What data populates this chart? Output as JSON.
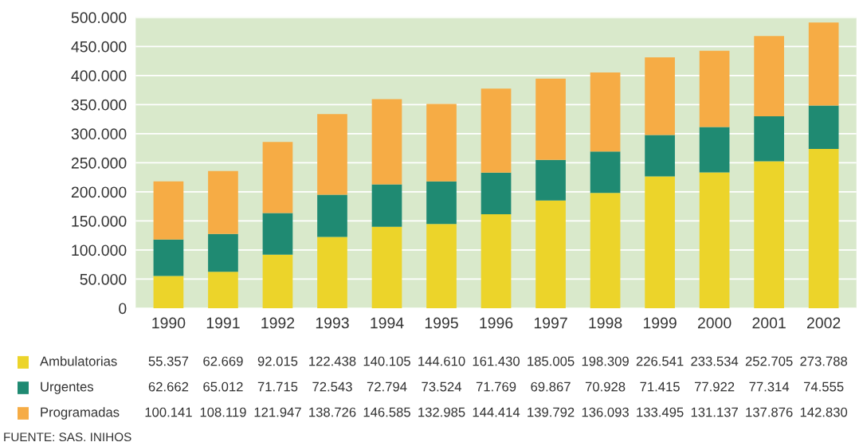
{
  "chart_data": {
    "type": "bar",
    "stacked": true,
    "categories": [
      "1990",
      "1991",
      "1992",
      "1993",
      "1994",
      "1995",
      "1996",
      "1997",
      "1998",
      "1999",
      "2000",
      "2001",
      "2002"
    ],
    "series": [
      {
        "name": "Ambulatorias",
        "color": "#ecd42a",
        "values": [
          55357,
          62669,
          92015,
          122438,
          140105,
          144610,
          161430,
          185005,
          198309,
          226541,
          233534,
          252705,
          273788
        ],
        "value_labels": [
          "55.357",
          "62.669",
          "92.015",
          "122.438",
          "140.105",
          "144.610",
          "161.430",
          "185.005",
          "198.309",
          "226.541",
          "233.534",
          "252.705",
          "273.788"
        ]
      },
      {
        "name": "Urgentes",
        "color": "#1f8a72",
        "values": [
          62662,
          65012,
          71715,
          72543,
          72794,
          73524,
          71769,
          69867,
          70928,
          71415,
          77922,
          77314,
          74555
        ],
        "value_labels": [
          "62.662",
          "65.012",
          "71.715",
          "72.543",
          "72.794",
          "73.524",
          "71.769",
          "69.867",
          "70.928",
          "71.415",
          "77.922",
          "77.314",
          "74.555"
        ]
      },
      {
        "name": "Programadas",
        "color": "#f6ac45",
        "values": [
          100141,
          108119,
          121947,
          138726,
          146585,
          132985,
          144414,
          139792,
          136093,
          133495,
          131137,
          137876,
          142830
        ],
        "value_labels": [
          "100.141",
          "108.119",
          "121.947",
          "138.726",
          "146.585",
          "132.985",
          "144.414",
          "139.792",
          "136.093",
          "133.495",
          "131.137",
          "137.876",
          "142.830"
        ]
      }
    ],
    "ylim": [
      0,
      500000
    ],
    "yticks": [
      {
        "value": 0,
        "label": "0"
      },
      {
        "value": 50000,
        "label": "50.000"
      },
      {
        "value": 100000,
        "label": "100.000"
      },
      {
        "value": 150000,
        "label": "150.000"
      },
      {
        "value": 200000,
        "label": "200.000"
      },
      {
        "value": 250000,
        "label": "250.000"
      },
      {
        "value": 300000,
        "label": "300.000"
      },
      {
        "value": 350000,
        "label": "350.000"
      },
      {
        "value": 400000,
        "label": "400.000"
      },
      {
        "value": 450000,
        "label": "450.000"
      },
      {
        "value": 500000,
        "label": "500.000"
      }
    ],
    "grid": "y",
    "legend": "bottom left",
    "annotations": [
      "FUENTE: SAS. INIHOS"
    ]
  }
}
